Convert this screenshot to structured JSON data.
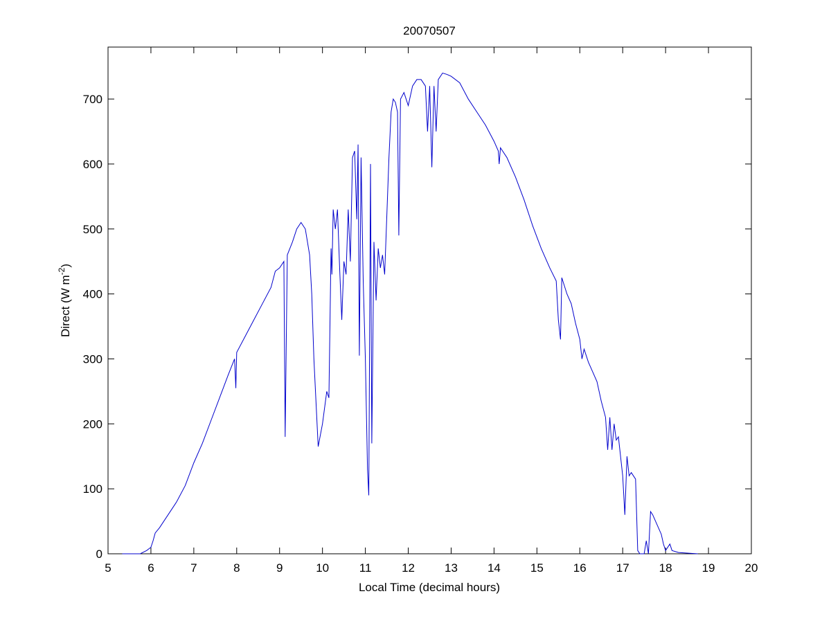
{
  "chart_data": {
    "type": "line",
    "title": "20070507",
    "xlabel": "Local Time (decimal hours)",
    "ylabel": {
      "text": "Direct (W m",
      "sup": "-2",
      "end": ")"
    },
    "series": [
      {
        "color": "#0000cc",
        "x": [
          5.33,
          5.75,
          5.9,
          6.0,
          6.05,
          6.1,
          6.2,
          6.4,
          6.6,
          6.8,
          7.0,
          7.2,
          7.4,
          7.6,
          7.8,
          7.95,
          7.98,
          8.0,
          8.2,
          8.4,
          8.6,
          8.8,
          8.9,
          9.0,
          9.1,
          9.13,
          9.18,
          9.3,
          9.4,
          9.5,
          9.6,
          9.7,
          9.75,
          9.8,
          9.9,
          10.0,
          10.1,
          10.15,
          10.2,
          10.22,
          10.25,
          10.3,
          10.35,
          10.4,
          10.45,
          10.5,
          10.55,
          10.6,
          10.65,
          10.7,
          10.75,
          10.8,
          10.83,
          10.86,
          10.9,
          10.95,
          11.0,
          11.05,
          11.08,
          11.12,
          11.15,
          11.2,
          11.25,
          11.3,
          11.35,
          11.4,
          11.45,
          11.5,
          11.55,
          11.6,
          11.65,
          11.7,
          11.75,
          11.78,
          11.82,
          11.9,
          12.0,
          12.1,
          12.2,
          12.3,
          12.4,
          12.45,
          12.5,
          12.55,
          12.6,
          12.65,
          12.7,
          12.8,
          12.9,
          13.0,
          13.2,
          13.4,
          13.6,
          13.8,
          14.0,
          14.1,
          14.12,
          14.15,
          14.3,
          14.5,
          14.7,
          14.9,
          15.1,
          15.3,
          15.45,
          15.5,
          15.55,
          15.58,
          15.7,
          15.8,
          15.9,
          16.0,
          16.05,
          16.1,
          16.2,
          16.3,
          16.4,
          16.5,
          16.6,
          16.65,
          16.7,
          16.75,
          16.8,
          16.85,
          16.9,
          17.0,
          17.05,
          17.1,
          17.15,
          17.2,
          17.3,
          17.35,
          17.4,
          17.5,
          17.55,
          17.6,
          17.65,
          17.7,
          17.8,
          17.9,
          17.95,
          18.0,
          18.1,
          18.15,
          18.3,
          18.5,
          18.75
        ],
        "values": [
          0,
          0,
          5,
          10,
          20,
          32,
          40,
          60,
          80,
          105,
          140,
          170,
          205,
          240,
          275,
          300,
          255,
          310,
          335,
          360,
          385,
          410,
          435,
          440,
          450,
          180,
          460,
          480,
          500,
          510,
          500,
          460,
          400,
          300,
          165,
          200,
          250,
          240,
          470,
          430,
          530,
          500,
          530,
          440,
          360,
          450,
          430,
          530,
          450,
          610,
          620,
          515,
          630,
          305,
          610,
          420,
          300,
          130,
          90,
          600,
          170,
          480,
          390,
          470,
          440,
          460,
          430,
          520,
          610,
          680,
          700,
          695,
          680,
          490,
          700,
          710,
          690,
          720,
          730,
          730,
          720,
          650,
          720,
          595,
          720,
          650,
          730,
          740,
          738,
          735,
          725,
          700,
          680,
          660,
          635,
          620,
          600,
          625,
          610,
          580,
          545,
          505,
          470,
          440,
          420,
          360,
          330,
          425,
          400,
          385,
          355,
          330,
          300,
          315,
          295,
          280,
          265,
          235,
          210,
          160,
          210,
          160,
          200,
          175,
          180,
          120,
          60,
          150,
          120,
          125,
          115,
          5,
          0,
          0,
          20,
          0,
          65,
          60,
          45,
          30,
          15,
          5,
          15,
          5,
          2,
          1,
          0
        ]
      }
    ],
    "xlim": [
      5,
      20
    ],
    "xticks": [
      5,
      6,
      7,
      8,
      9,
      10,
      11,
      12,
      13,
      14,
      15,
      16,
      17,
      18,
      19,
      20
    ],
    "ylim": [
      0,
      780
    ],
    "yticks": [
      0,
      100,
      200,
      300,
      400,
      500,
      600,
      700
    ],
    "grid": false
  }
}
